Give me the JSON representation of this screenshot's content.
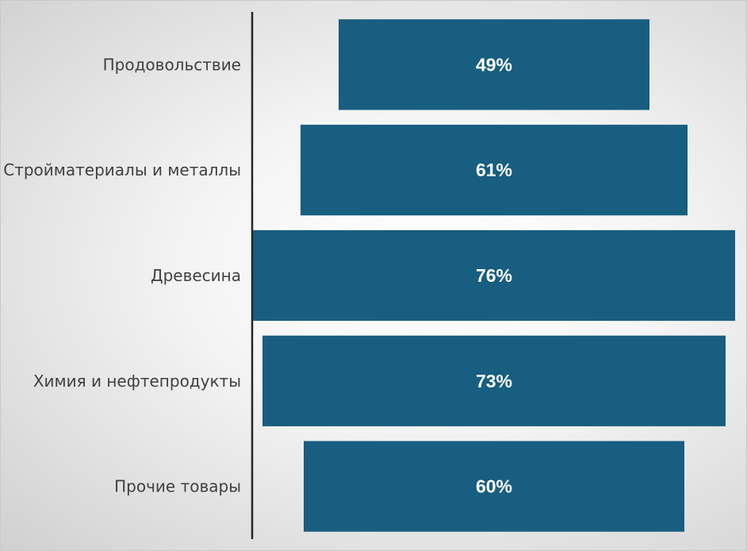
{
  "chart_data": {
    "type": "bar",
    "orientation": "horizontal",
    "alignment": "centered",
    "categories": [
      "Продовольствие",
      "Стройматериалы и металлы",
      "Древесина",
      "Химия и нефтепродукты",
      "Прочие товары"
    ],
    "values": [
      49,
      61,
      76,
      73,
      60
    ],
    "value_labels": [
      "49%",
      "61%",
      "76%",
      "73%",
      "60%"
    ],
    "unit": "%",
    "title": "",
    "xlabel": "",
    "ylabel": "",
    "xlim": [
      0,
      76
    ],
    "grid": false,
    "legend": "none",
    "colors": {
      "bar": "#175e80",
      "axis": "#262626",
      "category_text": "#404040",
      "value_text": "#ffffff"
    }
  }
}
